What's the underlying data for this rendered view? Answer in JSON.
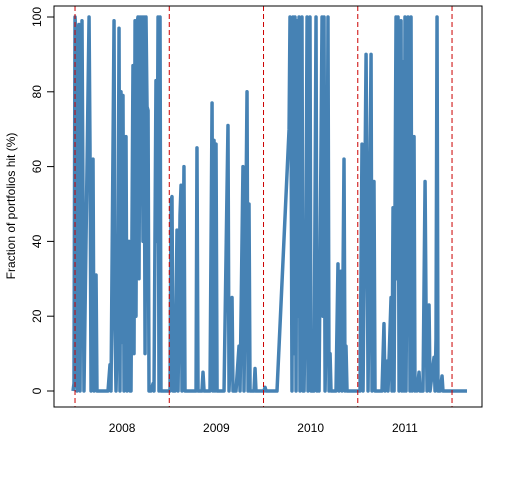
{
  "chart_data": {
    "type": "line",
    "y_label": "Fraction of portfolios hit (%)",
    "xlim": [
      2007.777,
      2012.318
    ],
    "ylim": [
      -4.28,
      102.94
    ],
    "yticks": [
      0,
      20,
      40,
      60,
      80,
      100
    ],
    "xticks": [
      {
        "value": 2008.5,
        "label": "2008"
      },
      {
        "value": 2009.5,
        "label": "2009"
      },
      {
        "value": 2010.5,
        "label": "2010"
      },
      {
        "value": 2011.5,
        "label": "2011"
      }
    ],
    "vlines": [
      2008,
      2009,
      2010,
      2011,
      2012
    ],
    "vline_color": "#cc0000",
    "grid": false,
    "series": [
      {
        "color": "#4682b4",
        "x": [
          2007.979,
          2007.989,
          2008.0,
          2008.011,
          2008.021,
          2008.042,
          2008.053,
          2008.074,
          2008.085,
          2008.095,
          2008.149,
          2008.159,
          2008.17,
          2008.191,
          2008.202,
          2008.223,
          2008.233,
          2008.35,
          2008.371,
          2008.382,
          2008.414,
          2008.424,
          2008.435,
          2008.456,
          2008.467,
          2008.477,
          2008.488,
          2008.499,
          2008.509,
          2008.52,
          2008.531,
          2008.541,
          2008.552,
          2008.562,
          2008.573,
          2008.584,
          2008.594,
          2008.615,
          2008.626,
          2008.637,
          2008.647,
          2008.658,
          2008.668,
          2008.679,
          2008.69,
          2008.7,
          2008.711,
          2008.721,
          2008.732,
          2008.743,
          2008.753,
          2008.764,
          2008.775,
          2008.785,
          2008.806,
          2008.828,
          2008.838,
          2008.859,
          2008.87,
          2008.881,
          2008.891,
          2008.902,
          2008.912,
          2008.934,
          2008.955,
          2009.008,
          2009.019,
          2009.029,
          2009.04,
          2009.061,
          2009.082,
          2009.093,
          2009.114,
          2009.125,
          2009.135,
          2009.156,
          2009.167,
          2009.178,
          2009.21,
          2009.284,
          2009.294,
          2009.305,
          2009.347,
          2009.358,
          2009.369,
          2009.432,
          2009.454,
          2009.464,
          2009.475,
          2009.485,
          2009.496,
          2009.507,
          2009.549,
          2009.581,
          2009.623,
          2009.634,
          2009.666,
          2009.676,
          2009.708,
          2009.74,
          2009.751,
          2009.782,
          2009.793,
          2009.814,
          2009.825,
          2009.836,
          2009.846,
          2009.857,
          2009.899,
          2009.91,
          2009.92,
          2009.973,
          2010.005,
          2010.016,
          2010.027,
          2010.069,
          2010.122,
          2010.143,
          2010.271,
          2010.281,
          2010.292,
          2010.302,
          2010.313,
          2010.324,
          2010.334,
          2010.345,
          2010.355,
          2010.366,
          2010.377,
          2010.387,
          2010.408,
          2010.419,
          2010.43,
          2010.451,
          2010.462,
          2010.472,
          2010.493,
          2010.504,
          2010.515,
          2010.536,
          2010.557,
          2010.568,
          2010.578,
          2010.589,
          2010.621,
          2010.631,
          2010.642,
          2010.653,
          2010.674,
          2010.684,
          2010.695,
          2010.706,
          2010.716,
          2010.769,
          2010.79,
          2010.801,
          2010.822,
          2010.833,
          2010.854,
          2010.865,
          2010.875,
          2010.886,
          2010.918,
          2011.003,
          2011.024,
          2011.045,
          2011.056,
          2011.088,
          2011.098,
          2011.109,
          2011.141,
          2011.151,
          2011.162,
          2011.172,
          2011.183,
          2011.215,
          2011.257,
          2011.278,
          2011.289,
          2011.31,
          2011.321,
          2011.353,
          2011.363,
          2011.374,
          2011.385,
          2011.406,
          2011.416,
          2011.427,
          2011.438,
          2011.459,
          2011.469,
          2011.48,
          2011.491,
          2011.501,
          2011.512,
          2011.533,
          2011.544,
          2011.554,
          2011.565,
          2011.576,
          2011.597,
          2011.607,
          2011.618,
          2011.629,
          2011.65,
          2011.66,
          2011.692,
          2011.714,
          2011.724,
          2011.735,
          2011.756,
          2011.767,
          2011.809,
          2011.82,
          2011.83,
          2011.841,
          2011.851,
          2011.873,
          2011.894,
          2011.904,
          2011.926,
          2012.159
        ],
        "values": [
          0,
          2,
          100,
          95,
          0,
          98,
          0,
          99,
          50,
          0,
          100,
          65,
          0,
          62,
          0,
          31,
          0,
          0,
          7,
          0,
          99,
          17,
          0,
          28,
          97,
          0,
          80,
          13,
          79,
          0,
          25,
          68,
          0,
          26,
          40,
          0,
          0,
          87,
          10,
          99,
          20,
          98,
          100,
          30,
          100,
          60,
          100,
          40,
          100,
          10,
          100,
          76,
          75,
          0,
          0,
          2,
          0,
          83,
          40,
          100,
          0,
          100,
          0,
          0,
          0,
          0,
          51,
          52,
          0,
          0,
          43,
          0,
          47,
          55,
          0,
          60,
          0,
          0,
          0,
          0,
          65,
          0,
          0,
          5,
          0,
          0,
          77,
          0,
          67,
          0,
          66,
          0,
          0,
          0,
          71,
          0,
          25,
          0,
          0,
          12,
          0,
          60,
          0,
          50,
          80,
          0,
          50,
          0,
          0,
          6,
          0,
          0,
          0,
          1,
          0,
          0,
          0,
          0,
          70,
          100,
          75,
          0,
          100,
          10,
          100,
          0,
          99,
          20,
          100,
          0,
          100,
          0,
          0,
          45,
          100,
          0,
          100,
          0,
          0,
          0,
          100,
          0,
          20,
          0,
          100,
          20,
          100,
          0,
          35,
          100,
          0,
          10,
          0,
          0,
          34,
          0,
          32,
          0,
          62,
          0,
          12,
          0,
          0,
          0,
          0,
          66,
          0,
          90,
          50,
          0,
          90,
          0,
          20,
          56,
          0,
          0,
          0,
          18,
          0,
          8,
          0,
          25,
          0,
          49,
          0,
          100,
          30,
          100,
          0,
          99,
          0,
          88,
          0,
          100,
          0,
          100,
          85,
          0,
          100,
          0,
          68,
          0,
          2,
          0,
          5,
          0,
          0,
          56,
          23,
          0,
          23,
          0,
          9,
          0,
          14,
          100,
          0,
          0,
          4,
          0,
          0,
          0
        ]
      }
    ]
  }
}
